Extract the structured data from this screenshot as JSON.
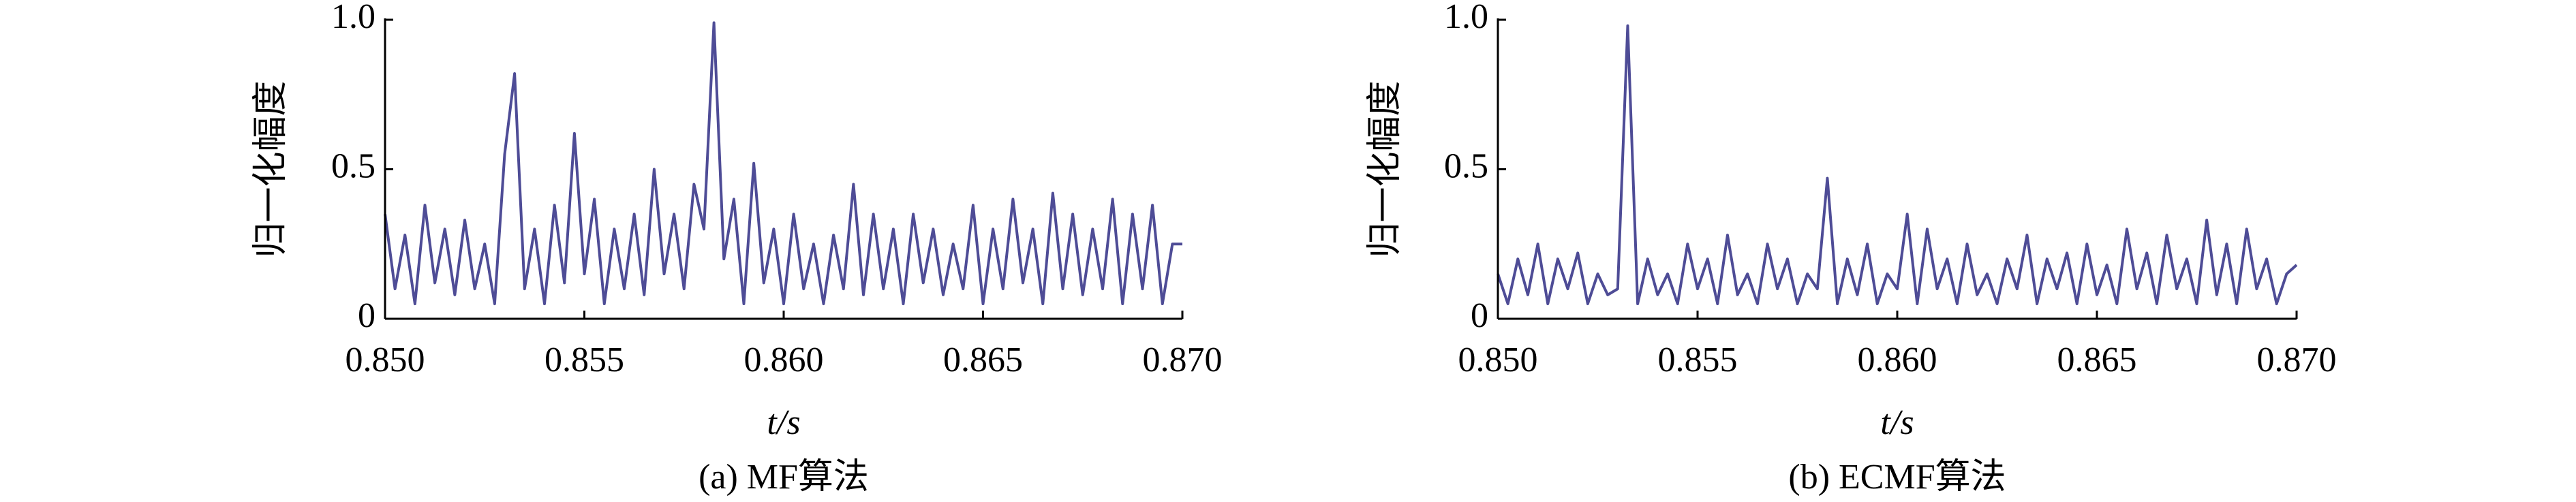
{
  "chart_data": [
    {
      "type": "line",
      "caption": "(a) MF算法",
      "ylabel": "归一化幅度",
      "xlabel": "t/s",
      "xlim": [
        0.85,
        0.87
      ],
      "ylim": [
        0,
        1
      ],
      "xticks": [
        {
          "value": 0.85,
          "label": "0.850"
        },
        {
          "value": 0.855,
          "label": "0.855"
        },
        {
          "value": 0.86,
          "label": "0.860"
        },
        {
          "value": 0.865,
          "label": "0.865"
        },
        {
          "value": 0.87,
          "label": "0.870"
        }
      ],
      "yticks": [
        0,
        0.5,
        {
          "value": 1,
          "label": "1.0"
        }
      ],
      "x": [
        0.85,
        0.85025,
        0.8505,
        0.85075,
        0.851,
        0.85125,
        0.8515,
        0.85175,
        0.852,
        0.85225,
        0.8525,
        0.85275,
        0.853,
        0.85325,
        0.8535,
        0.85375,
        0.854,
        0.85425,
        0.8545,
        0.85475,
        0.855,
        0.85525,
        0.8555,
        0.85575,
        0.856,
        0.85625,
        0.8565,
        0.85675,
        0.857,
        0.85725,
        0.8575,
        0.85775,
        0.858,
        0.85825,
        0.8585,
        0.85875,
        0.859,
        0.85925,
        0.8595,
        0.85975,
        0.86,
        0.86025,
        0.8605,
        0.86075,
        0.861,
        0.86125,
        0.8615,
        0.86175,
        0.862,
        0.86225,
        0.8625,
        0.86275,
        0.863,
        0.86325,
        0.8635,
        0.86375,
        0.864,
        0.86425,
        0.8645,
        0.86475,
        0.865,
        0.86525,
        0.8655,
        0.86575,
        0.866,
        0.86625,
        0.8665,
        0.86675,
        0.867,
        0.86725,
        0.8675,
        0.86775,
        0.868,
        0.86825,
        0.8685,
        0.86875,
        0.869,
        0.86925,
        0.8695,
        0.86975,
        0.87
      ],
      "series": [
        {
          "color": "#4e4c96",
          "values": [
            0.35,
            0.1,
            0.28,
            0.05,
            0.38,
            0.12,
            0.3,
            0.08,
            0.33,
            0.1,
            0.25,
            0.05,
            0.55,
            0.82,
            0.1,
            0.3,
            0.05,
            0.38,
            0.12,
            0.62,
            0.15,
            0.4,
            0.05,
            0.3,
            0.1,
            0.35,
            0.08,
            0.5,
            0.15,
            0.35,
            0.1,
            0.45,
            0.3,
            0.99,
            0.2,
            0.4,
            0.05,
            0.52,
            0.12,
            0.3,
            0.05,
            0.35,
            0.1,
            0.25,
            0.05,
            0.28,
            0.1,
            0.45,
            0.08,
            0.35,
            0.1,
            0.3,
            0.05,
            0.35,
            0.12,
            0.3,
            0.08,
            0.25,
            0.1,
            0.38,
            0.05,
            0.3,
            0.1,
            0.4,
            0.12,
            0.3,
            0.05,
            0.42,
            0.1,
            0.35,
            0.08,
            0.3,
            0.1,
            0.4,
            0.05,
            0.35,
            0.1,
            0.38,
            0.05,
            0.25,
            0.25
          ]
        }
      ]
    },
    {
      "type": "line",
      "caption": "(b) ECMF算法",
      "ylabel": "归一化幅度",
      "xlabel": "t/s",
      "xlim": [
        0.85,
        0.87
      ],
      "ylim": [
        0,
        1
      ],
      "xticks": [
        {
          "value": 0.85,
          "label": "0.850"
        },
        {
          "value": 0.855,
          "label": "0.855"
        },
        {
          "value": 0.86,
          "label": "0.860"
        },
        {
          "value": 0.865,
          "label": "0.865"
        },
        {
          "value": 0.87,
          "label": "0.870"
        }
      ],
      "yticks": [
        0,
        0.5,
        {
          "value": 1,
          "label": "1.0"
        }
      ],
      "x": [
        0.85,
        0.85025,
        0.8505,
        0.85075,
        0.851,
        0.85125,
        0.8515,
        0.85175,
        0.852,
        0.85225,
        0.8525,
        0.85275,
        0.853,
        0.85325,
        0.8535,
        0.85375,
        0.854,
        0.85425,
        0.8545,
        0.85475,
        0.855,
        0.85525,
        0.8555,
        0.85575,
        0.856,
        0.85625,
        0.8565,
        0.85675,
        0.857,
        0.85725,
        0.8575,
        0.85775,
        0.858,
        0.85825,
        0.8585,
        0.85875,
        0.859,
        0.85925,
        0.8595,
        0.85975,
        0.86,
        0.86025,
        0.8605,
        0.86075,
        0.861,
        0.86125,
        0.8615,
        0.86175,
        0.862,
        0.86225,
        0.8625,
        0.86275,
        0.863,
        0.86325,
        0.8635,
        0.86375,
        0.864,
        0.86425,
        0.8645,
        0.86475,
        0.865,
        0.86525,
        0.8655,
        0.86575,
        0.866,
        0.86625,
        0.8665,
        0.86675,
        0.867,
        0.86725,
        0.8675,
        0.86775,
        0.868,
        0.86825,
        0.8685,
        0.86875,
        0.869,
        0.86925,
        0.8695,
        0.86975,
        0.87
      ],
      "series": [
        {
          "color": "#4e4c96",
          "values": [
            0.15,
            0.05,
            0.2,
            0.08,
            0.25,
            0.05,
            0.2,
            0.1,
            0.22,
            0.05,
            0.15,
            0.08,
            0.1,
            0.98,
            0.05,
            0.2,
            0.08,
            0.15,
            0.05,
            0.25,
            0.1,
            0.2,
            0.05,
            0.28,
            0.08,
            0.15,
            0.05,
            0.25,
            0.1,
            0.2,
            0.05,
            0.15,
            0.1,
            0.47,
            0.05,
            0.2,
            0.08,
            0.25,
            0.05,
            0.15,
            0.1,
            0.35,
            0.05,
            0.3,
            0.1,
            0.2,
            0.05,
            0.25,
            0.08,
            0.15,
            0.05,
            0.2,
            0.1,
            0.28,
            0.05,
            0.2,
            0.1,
            0.22,
            0.05,
            0.25,
            0.08,
            0.18,
            0.05,
            0.3,
            0.1,
            0.22,
            0.05,
            0.28,
            0.1,
            0.2,
            0.05,
            0.33,
            0.08,
            0.25,
            0.05,
            0.3,
            0.1,
            0.2,
            0.05,
            0.15,
            0.18
          ]
        }
      ]
    }
  ]
}
